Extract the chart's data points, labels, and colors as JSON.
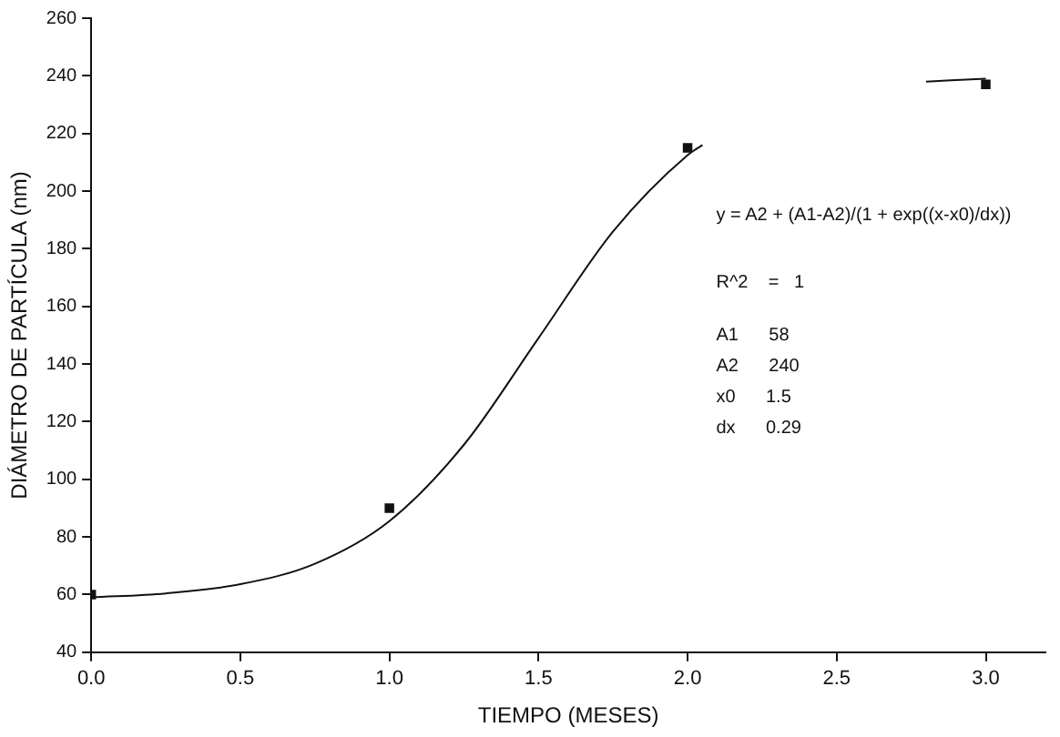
{
  "chart_data": {
    "type": "scatter",
    "xlabel": "TIEMPO (MESES)",
    "ylabel": "DIÁMETRO DE PARTÍCULA (nm)",
    "xlim": [
      0,
      3.2
    ],
    "xticks": [
      {
        "value": 0,
        "label": "0.0"
      },
      {
        "value": 0.5,
        "label": "0.5"
      },
      {
        "value": 1,
        "label": "1.0"
      },
      {
        "value": 1.5,
        "label": "1.5"
      },
      {
        "value": 2,
        "label": "2.0"
      },
      {
        "value": 2.5,
        "label": "2.5"
      },
      {
        "value": 3,
        "label": "3.0"
      }
    ],
    "ylim": [
      40,
      260
    ],
    "yticks": [
      40,
      60,
      80,
      100,
      120,
      140,
      160,
      180,
      200,
      220,
      240,
      260
    ],
    "grid": false,
    "legend": false,
    "marker": "square",
    "series": [
      {
        "color": "#111111",
        "x": [
          0,
          1,
          2,
          3
        ],
        "values": [
          60,
          90,
          215,
          237
        ]
      },
      {
        "type": "line",
        "marker": "none",
        "color": "#111111",
        "x": [
          0,
          0.25,
          0.5,
          0.75,
          1,
          1.25,
          1.5,
          1.75,
          2,
          2.05,
          2.4,
          2.8,
          3
        ],
        "values": [
          59,
          60.4,
          63.6,
          70.7,
          85.5,
          112,
          149,
          186,
          212.5,
          216,
          null,
          238,
          239
        ]
      }
    ],
    "annotations": [
      "y = A2 + (A1-A2)/(1 + exp((x-x0)/dx))",
      "R^2    =   1",
      "A1      58",
      "A2      240",
      "x0      1.5",
      "dx      0.29"
    ]
  }
}
